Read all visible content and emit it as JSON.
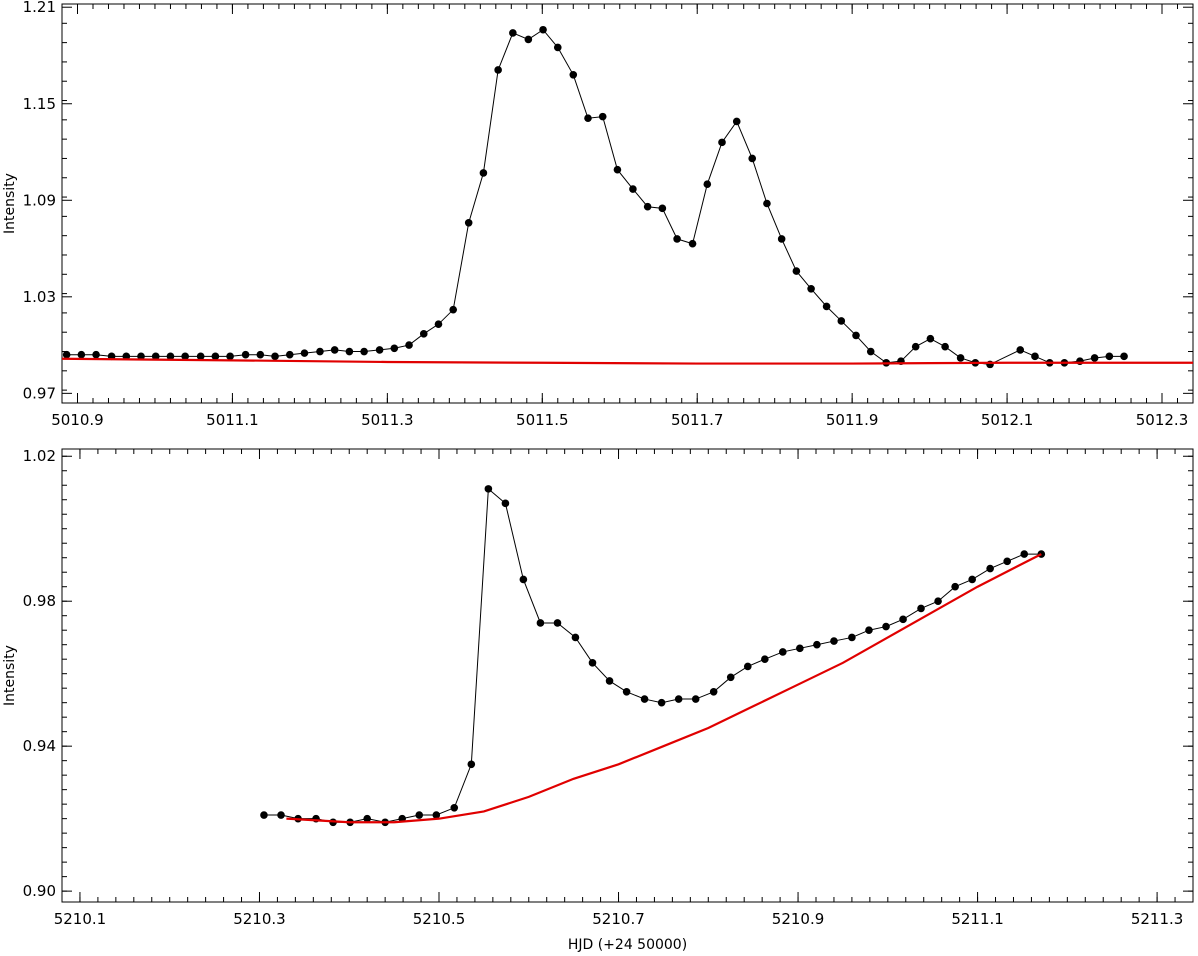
{
  "chart_data": [
    {
      "type": "line",
      "title": "",
      "xlabel": "",
      "ylabel": "Intensity",
      "xlim": [
        5010.88,
        5012.34
      ],
      "ylim": [
        0.964,
        1.212
      ],
      "xticks": [
        5010.9,
        5011.1,
        5011.3,
        5011.5,
        5011.7,
        5011.9,
        5012.1,
        5012.3
      ],
      "xtick_labels": [
        "5010.9",
        "5011.1",
        "5011.3",
        "5011.5",
        "5011.7",
        "5011.9",
        "5012.1",
        "5012.3"
      ],
      "yticks": [
        0.97,
        1.03,
        1.09,
        1.15,
        1.21
      ],
      "ytick_labels": [
        "0.97",
        "1.03",
        "1.09",
        "1.15",
        "1.21"
      ],
      "series": [
        {
          "style": "line+markers",
          "color": "#000000",
          "x": [
            5010.886,
            5010.905,
            5010.924,
            5010.944,
            5010.963,
            5010.982,
            5011.001,
            5011.02,
            5011.039,
            5011.059,
            5011.078,
            5011.097,
            5011.117,
            5011.136,
            5011.155,
            5011.174,
            5011.193,
            5011.213,
            5011.232,
            5011.251,
            5011.27,
            5011.29,
            5011.309,
            5011.328,
            5011.347,
            5011.366,
            5011.385,
            5011.405,
            5011.424,
            5011.443,
            5011.462,
            5011.482,
            5011.501,
            5011.52,
            5011.54,
            5011.559,
            5011.578,
            5011.597,
            5011.617,
            5011.636,
            5011.655,
            5011.674,
            5011.694,
            5011.713,
            5011.732,
            5011.751,
            5011.771,
            5011.79,
            5011.809,
            5011.828,
            5011.847,
            5011.867,
            5011.886,
            5011.905,
            5011.924,
            5011.944,
            5011.963,
            5011.982,
            5012.001,
            5012.02,
            5012.04,
            5012.059,
            5012.078,
            5012.117,
            5012.136,
            5012.155,
            5012.174,
            5012.194,
            5012.213,
            5012.232,
            5012.251
          ],
          "y": [
            0.994,
            0.994,
            0.994,
            0.993,
            0.993,
            0.993,
            0.993,
            0.993,
            0.993,
            0.993,
            0.993,
            0.993,
            0.994,
            0.994,
            0.993,
            0.994,
            0.995,
            0.996,
            0.997,
            0.996,
            0.996,
            0.997,
            0.998,
            1.0,
            1.007,
            1.013,
            1.022,
            1.076,
            1.107,
            1.171,
            1.194,
            1.19,
            1.196,
            1.185,
            1.168,
            1.141,
            1.142,
            1.109,
            1.097,
            1.086,
            1.085,
            1.066,
            1.063,
            1.1,
            1.126,
            1.139,
            1.116,
            1.088,
            1.066,
            1.046,
            1.035,
            1.024,
            1.015,
            1.006,
            0.996,
            0.989,
            0.99,
            0.999,
            1.004,
            0.999,
            0.992,
            0.989,
            0.988,
            0.997,
            0.993,
            0.989,
            0.989,
            0.99,
            0.992,
            0.993,
            0.993
          ]
        },
        {
          "style": "line",
          "color": "#e00000",
          "x": [
            5010.88,
            5011.1,
            5011.3,
            5011.5,
            5011.7,
            5011.9,
            5012.0,
            5012.1,
            5012.2,
            5012.34
          ],
          "y": [
            0.9915,
            0.9905,
            0.9895,
            0.989,
            0.9885,
            0.9885,
            0.9888,
            0.989,
            0.989,
            0.989
          ]
        }
      ]
    },
    {
      "type": "line",
      "title": "",
      "xlabel": "HJD (+24 50000)",
      "ylabel": "Intensity",
      "xlim": [
        5210.08,
        5211.34
      ],
      "ylim": [
        0.897,
        1.022
      ],
      "xticks": [
        5210.1,
        5210.3,
        5210.5,
        5210.7,
        5210.9,
        5211.1,
        5211.3
      ],
      "xtick_labels": [
        "5210.1",
        "5210.3",
        "5210.5",
        "5210.7",
        "5210.9",
        "5211.1",
        "5211.3"
      ],
      "yticks": [
        0.9,
        0.94,
        0.98,
        1.02
      ],
      "ytick_labels": [
        "0.90",
        "0.94",
        "0.98",
        "1.02"
      ],
      "series": [
        {
          "style": "line+markers",
          "color": "#000000",
          "x": [
            5210.305,
            5210.324,
            5210.343,
            5210.363,
            5210.382,
            5210.401,
            5210.42,
            5210.44,
            5210.459,
            5210.478,
            5210.497,
            5210.517,
            5210.536,
            5210.555,
            5210.574,
            5210.594,
            5210.613,
            5210.632,
            5210.652,
            5210.671,
            5210.69,
            5210.709,
            5210.729,
            5210.748,
            5210.767,
            5210.786,
            5210.806,
            5210.825,
            5210.844,
            5210.863,
            5210.883,
            5210.902,
            5210.921,
            5210.94,
            5210.96,
            5210.979,
            5210.998,
            5211.017,
            5211.037,
            5211.056,
            5211.075,
            5211.094,
            5211.114,
            5211.133,
            5211.152,
            5211.171
          ],
          "y": [
            0.921,
            0.921,
            0.92,
            0.92,
            0.919,
            0.919,
            0.92,
            0.919,
            0.92,
            0.921,
            0.921,
            0.923,
            0.935,
            1.011,
            1.007,
            0.986,
            0.974,
            0.974,
            0.97,
            0.963,
            0.958,
            0.955,
            0.953,
            0.952,
            0.953,
            0.953,
            0.955,
            0.959,
            0.962,
            0.964,
            0.966,
            0.967,
            0.968,
            0.969,
            0.97,
            0.972,
            0.973,
            0.975,
            0.978,
            0.98,
            0.984,
            0.986,
            0.989,
            0.991,
            0.993,
            0.993
          ]
        },
        {
          "style": "line",
          "color": "#e00000",
          "x": [
            5210.33,
            5210.4,
            5210.45,
            5210.5,
            5210.55,
            5210.6,
            5210.65,
            5210.7,
            5210.75,
            5210.8,
            5210.85,
            5210.9,
            5210.95,
            5211.0,
            5211.05,
            5211.1,
            5211.171
          ],
          "y": [
            0.92,
            0.919,
            0.919,
            0.92,
            0.922,
            0.926,
            0.931,
            0.935,
            0.94,
            0.945,
            0.951,
            0.957,
            0.963,
            0.97,
            0.977,
            0.984,
            0.993
          ]
        }
      ]
    }
  ]
}
